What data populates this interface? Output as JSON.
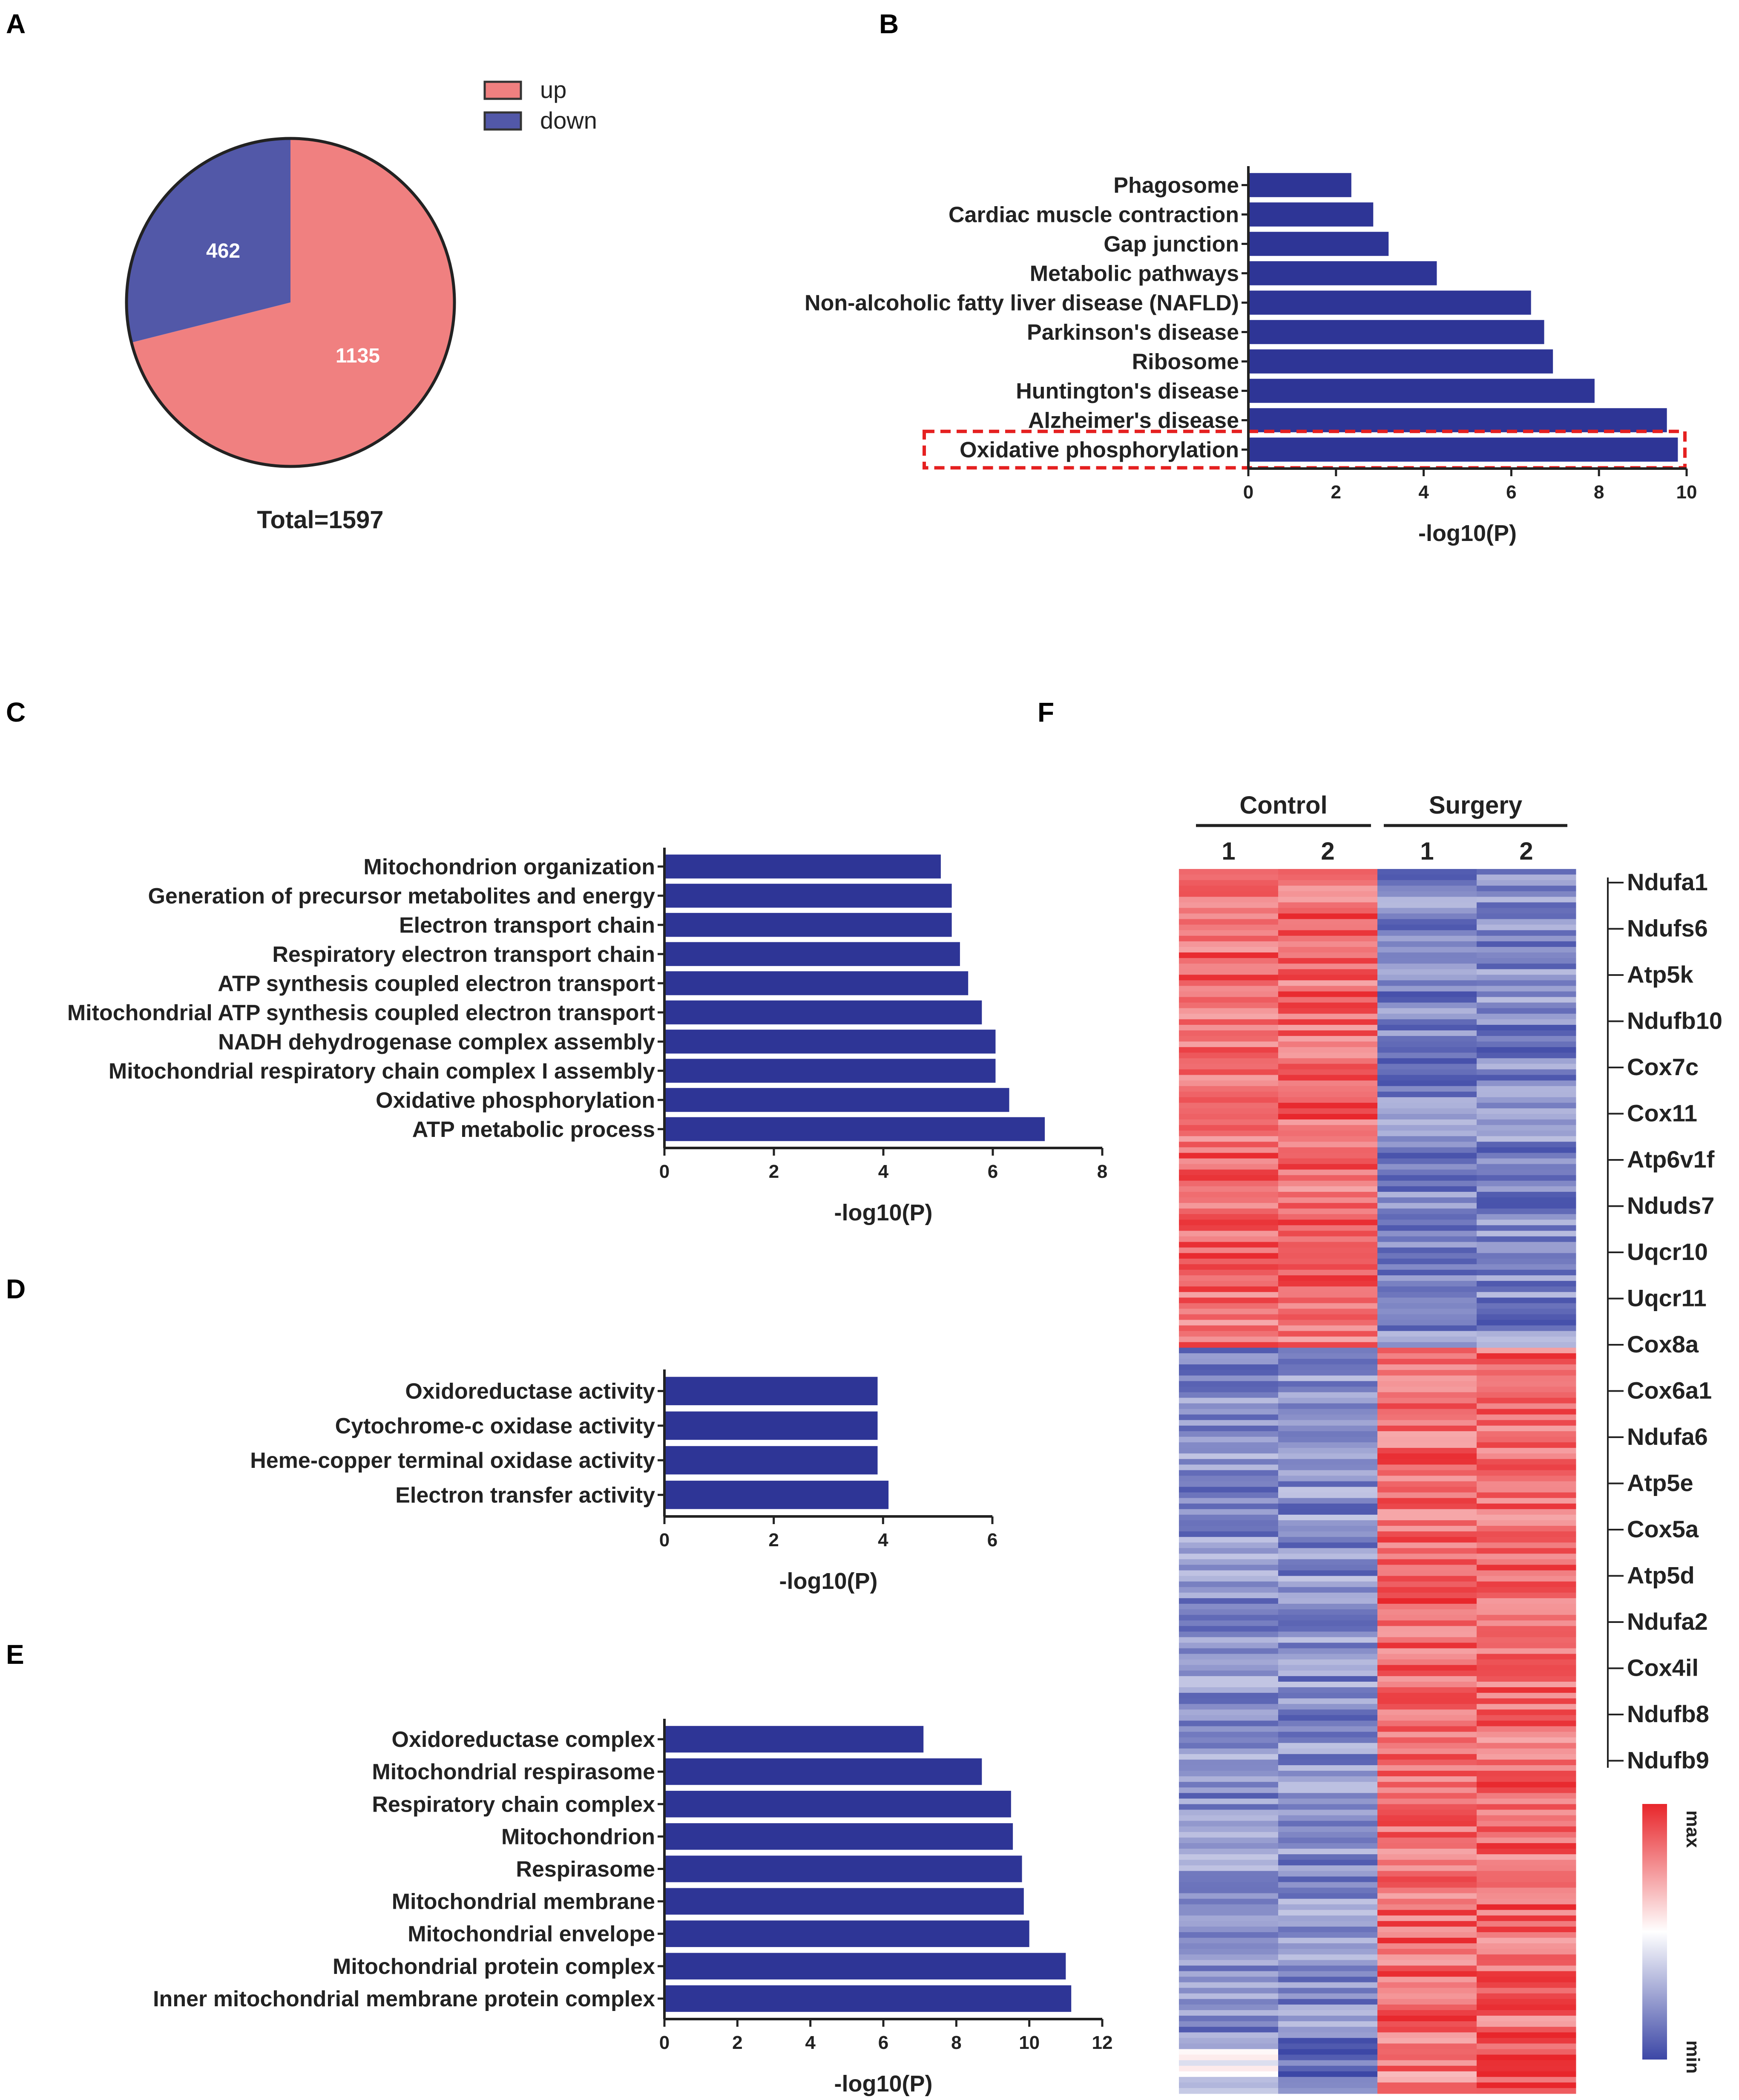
{
  "colors": {
    "up": "#f08080",
    "down": "#5258a8",
    "bar": "#2e3596",
    "highlight": "#e52020",
    "hm_max": "#e8262b",
    "hm_mid": "#ffffff",
    "hm_min": "#3c47a6"
  },
  "panel_labels": {
    "a": "A",
    "b": "B",
    "c": "C",
    "d": "D",
    "e": "E",
    "f": "F"
  },
  "chart_data": [
    {
      "id": "A",
      "type": "pie",
      "labels": [
        "up",
        "down"
      ],
      "values": [
        1135,
        462
      ],
      "value_labels": [
        "1135",
        "462"
      ],
      "legend": [
        "up",
        "down"
      ],
      "footer": "Total=1597"
    },
    {
      "id": "B",
      "type": "bar",
      "orientation": "horizontal",
      "categories": [
        "Phagosome",
        "Cardiac muscle contraction",
        "Gap junction",
        "Metabolic pathways",
        "Non-alcoholic fatty liver disease (NAFLD)",
        "Parkinson's disease",
        "Ribosome",
        "Huntington's disease",
        "Alzheimer's disease",
        "Oxidative phosphorylation"
      ],
      "values": [
        2.35,
        2.85,
        3.2,
        4.3,
        6.45,
        6.75,
        6.95,
        7.9,
        9.55,
        9.8
      ],
      "xlabel": "-log10(P)",
      "xlim": [
        0,
        10
      ],
      "xticks": [
        "0",
        "2",
        "4",
        "6",
        "8",
        "10"
      ],
      "highlight": "Oxidative phosphorylation"
    },
    {
      "id": "C",
      "type": "bar",
      "orientation": "horizontal",
      "categories": [
        "Mitochondrion organization",
        "Generation of precursor metabolites and energy",
        "Electron transport chain",
        "Respiratory electron transport chain",
        "ATP synthesis coupled electron transport",
        "Mitochondrial ATP synthesis coupled electron transport",
        "NADH dehydrogenase complex assembly",
        "Mitochondrial respiratory chain complex I assembly",
        "Oxidative phosphorylation",
        "ATP metabolic process"
      ],
      "values": [
        5.05,
        5.25,
        5.25,
        5.4,
        5.55,
        5.8,
        6.05,
        6.05,
        6.3,
        6.95
      ],
      "xlabel": "-log10(P)",
      "xlim": [
        0,
        8
      ],
      "xticks": [
        "0",
        "2",
        "4",
        "6",
        "8"
      ]
    },
    {
      "id": "D",
      "type": "bar",
      "orientation": "horizontal",
      "categories": [
        "Oxidoreductase activity",
        "Cytochrome-c oxidase activity",
        "Heme-copper terminal oxidase activity",
        "Electron transfer activity"
      ],
      "values": [
        3.9,
        3.9,
        3.9,
        4.1
      ],
      "xlabel": "-log10(P)",
      "xlim": [
        0,
        6
      ],
      "xticks": [
        "0",
        "2",
        "4",
        "6"
      ]
    },
    {
      "id": "E",
      "type": "bar",
      "orientation": "horizontal",
      "categories": [
        "Oxidoreductase complex",
        "Mitochondrial respirasome",
        "Respiratory chain complex",
        "Mitochondrion",
        "Respirasome",
        "Mitochondrial membrane",
        "Mitochondrial envelope",
        "Mitochondrial protein complex",
        "Inner mitochondrial membrane protein complex"
      ],
      "values": [
        7.1,
        8.7,
        9.5,
        9.55,
        9.8,
        9.85,
        10.0,
        11.0,
        11.15
      ],
      "xlabel": "-log10(P)",
      "xlim": [
        0,
        12
      ],
      "xticks": [
        "0",
        "2",
        "4",
        "6",
        "8",
        "10",
        "12"
      ]
    },
    {
      "id": "F",
      "type": "heatmap",
      "groups": [
        "Control",
        "Surgery"
      ],
      "columns": [
        "1",
        "2",
        "1",
        "2"
      ],
      "genes": [
        "Ndufa1",
        "Ndufs6",
        "Atp5k",
        "Ndufb10",
        "Cox7c",
        "Cox11",
        "Atp6v1f",
        "Nduds7",
        "Uqcr10",
        "Uqcr11",
        "Cox8a",
        "Cox6a1",
        "Ndufa6",
        "Atp5e",
        "Cox5a",
        "Atp5d",
        "Ndufa2",
        "Cox4il",
        "Ndufb8",
        "Ndufb9"
      ],
      "scale_labels": [
        "max",
        "min"
      ]
    }
  ]
}
